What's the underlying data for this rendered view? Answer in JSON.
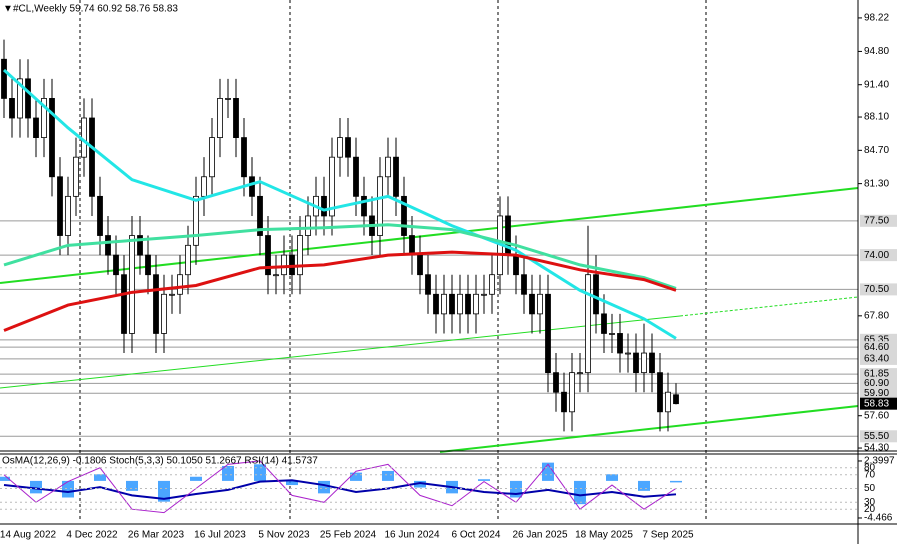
{
  "chart_data": [
    {
      "type": "candlestick",
      "title": "#CL,Weekly  59.74 60.92 58.76 58.83",
      "categories": [
        null,
        null,
        null,
        "14 Aug 2022",
        null,
        null,
        null,
        null,
        null,
        null,
        null,
        "4 Dec 2022",
        null,
        null,
        null,
        null,
        null,
        null,
        null,
        "26 Mar 2023",
        null,
        null,
        null,
        null,
        null,
        null,
        null,
        "16 Jul 2023",
        null,
        null,
        null,
        null,
        null,
        null,
        null,
        "5 Nov 2023",
        null,
        null,
        null,
        null,
        null,
        null,
        null,
        "25 Feb 2024",
        null,
        null,
        null,
        null,
        null,
        null,
        null,
        "16 Jun 2024",
        null,
        null,
        null,
        null,
        null,
        null,
        null,
        "6 Oct 2024",
        null,
        null,
        null,
        null,
        null,
        null,
        null,
        "26 Jan 2025",
        null,
        null,
        null,
        null,
        null,
        null,
        null,
        "18 May 2025",
        null,
        null,
        null,
        null,
        null,
        null,
        null,
        "7 Sep 2025",
        null
      ],
      "open": [
        94,
        90,
        88,
        92,
        88,
        86,
        90,
        82,
        76,
        80,
        84,
        88,
        80,
        76,
        74,
        72,
        66,
        76,
        74,
        72,
        66,
        70,
        70,
        72,
        75,
        80,
        82,
        86,
        90,
        90,
        86,
        82,
        80,
        76,
        72,
        72,
        74,
        72,
        76,
        78,
        80,
        78,
        84,
        86,
        84,
        80,
        78,
        76,
        82,
        84,
        80,
        76,
        74,
        72,
        70,
        68,
        70,
        68,
        70,
        68,
        70,
        70,
        72,
        78,
        74,
        72,
        70,
        68,
        70,
        62,
        60,
        58,
        62,
        62,
        72,
        68,
        66,
        66,
        64,
        64,
        62,
        64,
        62,
        58,
        59.74
      ],
      "high": [
        96,
        92,
        94,
        94,
        90,
        92,
        92,
        84,
        82,
        86,
        90,
        90,
        82,
        78,
        76,
        74,
        78,
        78,
        76,
        74,
        72,
        72,
        74,
        77,
        82,
        84,
        88,
        92,
        92,
        92,
        88,
        84,
        82,
        78,
        74,
        76,
        76,
        78,
        80,
        82,
        82,
        86,
        88,
        88,
        86,
        82,
        80,
        84,
        86,
        86,
        82,
        78,
        76,
        74,
        72,
        72,
        72,
        72,
        72,
        72,
        72,
        74,
        80,
        80,
        76,
        74,
        72,
        72,
        72,
        64,
        62,
        64,
        64,
        77,
        74,
        70,
        68,
        68,
        66,
        66,
        67,
        66,
        64,
        62,
        60.92
      ],
      "low": [
        88,
        86,
        86,
        86,
        84,
        84,
        80,
        74,
        74,
        78,
        82,
        78,
        74,
        72,
        70,
        64,
        64,
        72,
        70,
        64,
        64,
        68,
        68,
        70,
        73,
        78,
        80,
        84,
        88,
        84,
        80,
        78,
        74,
        70,
        70,
        70,
        70,
        70,
        74,
        76,
        76,
        76,
        82,
        82,
        78,
        76,
        74,
        74,
        80,
        78,
        74,
        72,
        70,
        68,
        66,
        66,
        66,
        66,
        66,
        66,
        68,
        68,
        70,
        72,
        70,
        68,
        66,
        66,
        60,
        58,
        56,
        56,
        60,
        60,
        66,
        64,
        64,
        62,
        62,
        60,
        60,
        60,
        56,
        56,
        58.76
      ],
      "close": [
        90,
        88,
        92,
        88,
        86,
        90,
        82,
        76,
        80,
        84,
        88,
        80,
        76,
        74,
        72,
        66,
        76,
        74,
        72,
        66,
        70,
        70,
        72,
        75,
        80,
        82,
        86,
        90,
        90,
        86,
        82,
        80,
        76,
        72,
        72,
        74,
        72,
        76,
        78,
        80,
        78,
        84,
        86,
        84,
        80,
        78,
        76,
        82,
        84,
        80,
        76,
        74,
        72,
        70,
        68,
        70,
        68,
        70,
        68,
        70,
        70,
        72,
        78,
        74,
        72,
        70,
        68,
        70,
        62,
        60,
        58,
        62,
        62,
        72,
        68,
        66,
        66,
        64,
        64,
        62,
        64,
        62,
        58,
        60,
        58.83
      ],
      "up_color": "#ffffff",
      "down_color": "#000000",
      "wick_color": "#000000",
      "overlays": [
        {
          "color": "#22e6e6",
          "x": [
            0,
            8,
            16,
            24,
            32,
            40,
            48,
            56,
            64,
            72,
            80,
            84
          ],
          "values": [
            92.9,
            87,
            81.7,
            79.6,
            81.5,
            78.6,
            80,
            77,
            74.5,
            70.4,
            67.5,
            65.5
          ]
        },
        {
          "color": "#40e0a0",
          "x": [
            0,
            8,
            16,
            24,
            32,
            40,
            48,
            56,
            64,
            72,
            80,
            84
          ],
          "values": [
            73,
            75,
            75.5,
            76,
            76.6,
            76.8,
            77.1,
            76.6,
            75,
            73,
            71.7,
            70.6
          ]
        },
        {
          "color": "#dd1111",
          "x": [
            0,
            8,
            16,
            24,
            32,
            40,
            48,
            56,
            64,
            72,
            80,
            84
          ],
          "values": [
            66.3,
            68.9,
            70.2,
            70.9,
            72.7,
            73,
            74,
            74.3,
            74,
            72.5,
            71.5,
            70.4
          ]
        }
      ],
      "ylim": [
        54.1,
        100.05
      ],
      "xlim": [
        -0.5,
        106.75
      ],
      "yticks": [
        {
          "value": 98.22,
          "label": "98.22"
        },
        {
          "value": 94.8,
          "label": "94.80"
        },
        {
          "value": 91.4,
          "label": "91.40"
        },
        {
          "value": 88.1,
          "label": "88.10"
        },
        {
          "value": 84.7,
          "label": "84.70"
        },
        {
          "value": 81.3,
          "label": "81.30"
        },
        {
          "value": 67.8,
          "label": "67.80"
        },
        {
          "value": 57.6,
          "label": "57.60"
        },
        {
          "value": 54.3,
          "label": "54.30"
        }
      ],
      "levels": [
        {
          "value": 77.5,
          "label": "77.50"
        },
        {
          "value": 74,
          "label": "74.00"
        },
        {
          "value": 70.5,
          "label": "70.50"
        },
        {
          "value": 65.35,
          "label": "65.35"
        },
        {
          "value": 64.6,
          "label": "64.60"
        },
        {
          "value": 63.4,
          "label": "63.40"
        },
        {
          "value": 61.85,
          "label": "61.85"
        },
        {
          "value": 60.9,
          "label": "60.90"
        },
        {
          "value": 59.9,
          "label": "59.90"
        },
        {
          "value": 55.5,
          "label": "55.50"
        }
      ],
      "level_color": "#9a9a9a"
    },
    {
      "type": "oscillator",
      "title": "OsMA(12,26,9) -0.1806  Stoch(5,3,3) 50.1050 51.2667  RSI(14) 41.5737",
      "x": [
        0,
        4,
        8,
        12,
        16,
        20,
        24,
        28,
        32,
        36,
        40,
        44,
        48,
        52,
        56,
        60,
        64,
        68,
        72,
        76,
        80,
        84
      ],
      "xlim": [
        -0.5,
        106.75
      ],
      "series": [
        {
          "color": "#0000aa",
          "values": [
            55,
            50,
            45,
            52,
            40,
            35,
            42,
            48,
            60,
            62,
            55,
            45,
            50,
            58,
            52,
            45,
            42,
            48,
            40,
            45,
            38,
            41.5737
          ]
        },
        {
          "color": "#aa22cc",
          "values": [
            70,
            30,
            60,
            80,
            20,
            15,
            50,
            85,
            90,
            40,
            30,
            75,
            85,
            40,
            25,
            60,
            30,
            85,
            20,
            55,
            20,
            50.105
          ]
        }
      ],
      "osma": {
        "color": "#1e90ff",
        "axis": "y2",
        "values": [
          0.5,
          -1.5,
          -2,
          0.8,
          -1.2,
          -2.5,
          0.5,
          1.8,
          2,
          -0.5,
          -1.5,
          1,
          1.2,
          -0.8,
          -1.5,
          0.2,
          -2,
          2.2,
          -2.8,
          0.8,
          -1.2,
          -0.1806
        ]
      },
      "ylim": [
        0,
        100
      ],
      "yticks": [
        80,
        70,
        50,
        30,
        20
      ],
      "y2lim": [
        -4.95,
        3.12
      ],
      "y2ticks": [
        2.3997,
        -4.466
      ]
    }
  ]
}
